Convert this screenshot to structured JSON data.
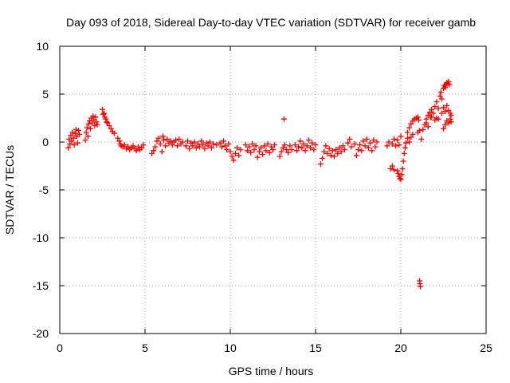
{
  "chart_data": {
    "type": "scatter",
    "title": "Day 093 of 2018, Sidereal Day-to-day VTEC variation (SDTVAR) for receiver gamb",
    "xlabel": "GPS time / hours",
    "ylabel": "SDTVAR / TECUs",
    "xlim": [
      0,
      25
    ],
    "ylim": [
      -20,
      10
    ],
    "xticks": [
      0,
      5,
      10,
      15,
      20,
      25
    ],
    "xtick_labels": [
      "0",
      "5",
      "10",
      "15",
      "20",
      "25"
    ],
    "yticks": [
      -20,
      -15,
      -10,
      -5,
      0,
      5,
      10
    ],
    "ytick_labels": [
      "-20",
      "-15",
      "-10",
      "-5",
      "0",
      "5",
      "10"
    ],
    "grid": true,
    "marker": "+",
    "color": "#ff0000",
    "series": [
      {
        "name": "SDTVAR",
        "points": [
          [
            0.5,
            -0.6
          ],
          [
            0.55,
            0.3
          ],
          [
            0.6,
            -0.2
          ],
          [
            0.65,
            0.7
          ],
          [
            0.7,
            0.1
          ],
          [
            0.75,
            1.0
          ],
          [
            0.8,
            0.4
          ],
          [
            0.85,
            -0.3
          ],
          [
            0.9,
            0.9
          ],
          [
            0.95,
            1.3
          ],
          [
            1.0,
            0.6
          ],
          [
            1.05,
            -0.1
          ],
          [
            1.1,
            1.2
          ],
          [
            1.15,
            0.8
          ],
          [
            1.5,
            0.2
          ],
          [
            1.55,
            1.0
          ],
          [
            1.6,
            1.5
          ],
          [
            1.65,
            0.6
          ],
          [
            1.7,
            1.9
          ],
          [
            1.75,
            2.2
          ],
          [
            1.8,
            1.4
          ],
          [
            1.85,
            2.5
          ],
          [
            1.9,
            2.0
          ],
          [
            1.95,
            2.7
          ],
          [
            2.0,
            2.3
          ],
          [
            2.05,
            1.7
          ],
          [
            2.1,
            2.6
          ],
          [
            2.15,
            2.1
          ],
          [
            2.2,
            1.8
          ],
          [
            2.5,
            3.4
          ],
          [
            2.55,
            2.9
          ],
          [
            2.6,
            3.0
          ],
          [
            2.65,
            2.6
          ],
          [
            2.7,
            2.4
          ],
          [
            2.75,
            2.1
          ],
          [
            2.8,
            2.0
          ],
          [
            2.9,
            1.7
          ],
          [
            3.0,
            1.4
          ],
          [
            3.1,
            1.1
          ],
          [
            3.2,
            0.9
          ],
          [
            3.4,
            0.4
          ],
          [
            3.5,
            0.1
          ],
          [
            3.55,
            -0.2
          ],
          [
            3.6,
            -0.4
          ],
          [
            3.7,
            -0.5
          ],
          [
            3.8,
            -0.3
          ],
          [
            3.9,
            -0.7
          ],
          [
            4.0,
            -0.5
          ],
          [
            4.1,
            -0.8
          ],
          [
            4.2,
            -0.6
          ],
          [
            4.3,
            -0.4
          ],
          [
            4.4,
            -0.7
          ],
          [
            4.5,
            -0.9
          ],
          [
            4.6,
            -0.5
          ],
          [
            4.7,
            -0.8
          ],
          [
            4.8,
            -0.6
          ],
          [
            4.9,
            -0.3
          ],
          [
            5.4,
            -1.2
          ],
          [
            5.5,
            -0.9
          ],
          [
            5.6,
            -0.5
          ],
          [
            5.7,
            0.1
          ],
          [
            5.8,
            0.4
          ],
          [
            5.9,
            -0.2
          ],
          [
            6.0,
            -1.0
          ],
          [
            6.05,
            0.6
          ],
          [
            6.1,
            0.2
          ],
          [
            6.2,
            -0.4
          ],
          [
            6.3,
            0.3
          ],
          [
            6.4,
            -0.1
          ],
          [
            6.5,
            0.1
          ],
          [
            6.6,
            -0.3
          ],
          [
            6.7,
            0.0
          ],
          [
            6.8,
            0.2
          ],
          [
            6.9,
            -0.4
          ],
          [
            7.0,
            0.3
          ],
          [
            7.1,
            -0.2
          ],
          [
            7.2,
            0.0
          ],
          [
            7.4,
            -0.4
          ],
          [
            7.5,
            0.1
          ],
          [
            7.6,
            -0.7
          ],
          [
            7.7,
            -0.1
          ],
          [
            7.8,
            -0.4
          ],
          [
            7.9,
            0.0
          ],
          [
            8.0,
            -0.6
          ],
          [
            8.1,
            -0.2
          ],
          [
            8.2,
            -0.5
          ],
          [
            8.3,
            0.1
          ],
          [
            8.4,
            -0.3
          ],
          [
            8.5,
            -0.7
          ],
          [
            8.6,
            -0.1
          ],
          [
            8.7,
            -0.4
          ],
          [
            8.8,
            0.0
          ],
          [
            8.9,
            -0.6
          ],
          [
            9.0,
            -0.2
          ],
          [
            9.2,
            -0.3
          ],
          [
            9.4,
            -0.1
          ],
          [
            9.5,
            -0.5
          ],
          [
            9.6,
            0.1
          ],
          [
            9.7,
            -0.4
          ],
          [
            9.8,
            -0.8
          ],
          [
            9.9,
            -0.2
          ],
          [
            10.0,
            -1.0
          ],
          [
            10.1,
            -1.5
          ],
          [
            10.2,
            -1.9
          ],
          [
            10.3,
            -1.2
          ],
          [
            10.4,
            -0.6
          ],
          [
            10.5,
            -1.4
          ],
          [
            10.6,
            -0.8
          ],
          [
            10.9,
            -0.3
          ],
          [
            11.0,
            -0.9
          ],
          [
            11.1,
            -0.5
          ],
          [
            11.2,
            -1.1
          ],
          [
            11.3,
            -0.2
          ],
          [
            11.4,
            -0.8
          ],
          [
            11.5,
            -0.4
          ],
          [
            11.6,
            -1.6
          ],
          [
            11.7,
            -1.0
          ],
          [
            11.8,
            -0.6
          ],
          [
            11.9,
            -1.3
          ],
          [
            12.0,
            -0.4
          ],
          [
            12.1,
            -0.9
          ],
          [
            12.2,
            -0.2
          ],
          [
            12.3,
            -1.1
          ],
          [
            12.4,
            -0.5
          ],
          [
            12.5,
            -0.8
          ],
          [
            12.6,
            -0.3
          ],
          [
            12.9,
            -1.5
          ],
          [
            13.0,
            -1.0
          ],
          [
            13.1,
            -0.6
          ],
          [
            13.15,
            2.4
          ],
          [
            13.2,
            -0.3
          ],
          [
            13.3,
            -0.8
          ],
          [
            13.4,
            -1.1
          ],
          [
            13.5,
            -0.4
          ],
          [
            13.6,
            -0.8
          ],
          [
            13.8,
            -0.3
          ],
          [
            13.9,
            -0.9
          ],
          [
            14.0,
            -0.5
          ],
          [
            14.1,
            0.1
          ],
          [
            14.2,
            -0.6
          ],
          [
            14.3,
            -0.2
          ],
          [
            14.4,
            -0.9
          ],
          [
            14.5,
            -0.4
          ],
          [
            14.6,
            0.2
          ],
          [
            14.7,
            -0.6
          ],
          [
            14.8,
            -0.1
          ],
          [
            14.9,
            -0.8
          ],
          [
            15.0,
            -0.3
          ],
          [
            15.3,
            -2.3
          ],
          [
            15.4,
            -1.7
          ],
          [
            15.5,
            -1.0
          ],
          [
            15.6,
            -0.4
          ],
          [
            15.7,
            -1.2
          ],
          [
            15.8,
            -0.7
          ],
          [
            15.9,
            -1.4
          ],
          [
            16.0,
            -0.9
          ],
          [
            16.1,
            -1.5
          ],
          [
            16.2,
            -0.8
          ],
          [
            16.3,
            -1.2
          ],
          [
            16.4,
            -0.6
          ],
          [
            16.5,
            -1.0
          ],
          [
            16.6,
            -0.4
          ],
          [
            16.7,
            -0.8
          ],
          [
            16.9,
            -0.1
          ],
          [
            17.0,
            0.3
          ],
          [
            17.1,
            -0.5
          ],
          [
            17.3,
            -0.2
          ],
          [
            17.4,
            -1.4
          ],
          [
            17.5,
            -0.8
          ],
          [
            17.6,
            -0.3
          ],
          [
            17.7,
            -0.9
          ],
          [
            17.8,
            0.1
          ],
          [
            17.9,
            -0.4
          ],
          [
            18.0,
            0.3
          ],
          [
            18.1,
            -0.6
          ],
          [
            18.2,
            -0.1
          ],
          [
            18.3,
            -0.9
          ],
          [
            18.4,
            0.2
          ],
          [
            18.5,
            -0.5
          ],
          [
            18.6,
            0.0
          ],
          [
            19.2,
            -0.4
          ],
          [
            19.3,
            0.0
          ],
          [
            19.5,
            -0.2
          ],
          [
            19.6,
            0.3
          ],
          [
            19.7,
            -0.4
          ],
          [
            19.8,
            0.2
          ],
          [
            19.9,
            -0.3
          ],
          [
            20.0,
            0.6
          ],
          [
            19.4,
            -2.8
          ],
          [
            19.5,
            -2.5
          ],
          [
            19.6,
            -2.9
          ],
          [
            19.8,
            -3.0
          ],
          [
            19.85,
            -3.3
          ],
          [
            19.9,
            -3.6
          ],
          [
            19.95,
            -3.8
          ],
          [
            20.0,
            -3.9
          ],
          [
            20.05,
            -3.4
          ],
          [
            20.1,
            -2.8
          ],
          [
            20.15,
            -2.0
          ],
          [
            20.2,
            -1.2
          ],
          [
            20.25,
            -0.6
          ],
          [
            20.3,
            -0.1
          ],
          [
            20.4,
            0.4
          ],
          [
            20.4,
            1.0
          ],
          [
            20.5,
            1.5
          ],
          [
            20.6,
            1.9
          ],
          [
            20.7,
            2.2
          ],
          [
            20.8,
            2.4
          ],
          [
            20.9,
            2.5
          ],
          [
            21.0,
            2.6
          ],
          [
            21.05,
            2.3
          ],
          [
            20.5,
            0.0
          ],
          [
            20.6,
            0.5
          ],
          [
            20.7,
            0.8
          ],
          [
            21.0,
            1.0
          ],
          [
            21.1,
            1.2
          ],
          [
            21.1,
            -14.5
          ],
          [
            21.12,
            -14.8
          ],
          [
            21.15,
            -15.1
          ],
          [
            21.2,
            0.3
          ],
          [
            21.3,
            1.3
          ],
          [
            21.4,
            1.8
          ],
          [
            21.5,
            2.4
          ],
          [
            21.6,
            2.8
          ],
          [
            21.7,
            3.1
          ],
          [
            21.75,
            2.6
          ],
          [
            21.8,
            3.4
          ],
          [
            21.9,
            3.0
          ],
          [
            22.0,
            3.7
          ],
          [
            22.1,
            4.2
          ],
          [
            22.2,
            3.5
          ],
          [
            21.5,
            2.0
          ],
          [
            21.6,
            1.6
          ],
          [
            21.8,
            2.6
          ],
          [
            22.0,
            2.3
          ],
          [
            22.1,
            2.5
          ],
          [
            22.2,
            2.4
          ],
          [
            22.3,
            4.8
          ],
          [
            22.35,
            5.2
          ],
          [
            22.4,
            4.5
          ],
          [
            22.5,
            5.6
          ],
          [
            22.55,
            5.9
          ],
          [
            22.6,
            5.7
          ],
          [
            22.65,
            6.0
          ],
          [
            22.7,
            6.2
          ],
          [
            22.75,
            6.1
          ],
          [
            22.8,
            6.3
          ],
          [
            22.85,
            6.0
          ],
          [
            22.4,
            3.0
          ],
          [
            22.5,
            3.6
          ],
          [
            22.6,
            3.2
          ],
          [
            22.7,
            3.8
          ],
          [
            22.8,
            3.3
          ],
          [
            22.9,
            3.0
          ],
          [
            22.95,
            2.8
          ],
          [
            22.5,
            1.4
          ],
          [
            22.6,
            1.8
          ],
          [
            22.7,
            2.2
          ],
          [
            22.8,
            2.0
          ],
          [
            22.9,
            2.4
          ],
          [
            22.95,
            2.1
          ]
        ]
      }
    ]
  }
}
